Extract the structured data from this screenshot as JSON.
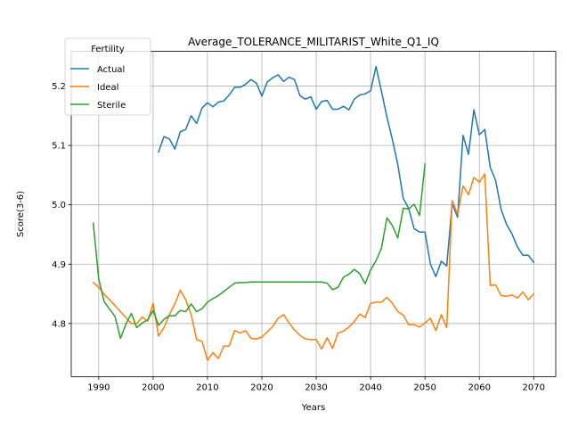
{
  "chart_data": {
    "type": "line",
    "title": "Average_TOLERANCE_MILITARIST_White_Q1_IQ",
    "xlabel": "Years",
    "ylabel": "Score(3-6)",
    "xlim": [
      1984.95,
      2074.05
    ],
    "ylim": [
      4.7105,
      5.2585
    ],
    "xticks": [
      1990,
      2000,
      2010,
      2020,
      2030,
      2040,
      2050,
      2060,
      2070
    ],
    "yticks": [
      4.8,
      4.9,
      5.0,
      5.1,
      5.2
    ],
    "grid": true,
    "legend": {
      "title": "Fertility",
      "position": "top-left"
    },
    "series": [
      {
        "name": "Actual",
        "color": "#1f77b4",
        "x": [
          2001,
          2002,
          2003,
          2004,
          2005,
          2006,
          2007,
          2008,
          2009,
          2010,
          2011,
          2012,
          2013,
          2014,
          2015,
          2016,
          2017,
          2018,
          2019,
          2020,
          2021,
          2022,
          2023,
          2024,
          2025,
          2026,
          2027,
          2028,
          2029,
          2030,
          2031,
          2032,
          2033,
          2034,
          2035,
          2036,
          2037,
          2038,
          2039,
          2040,
          2041,
          2042,
          2043,
          2044,
          2045,
          2046,
          2047,
          2048,
          2049,
          2050,
          2051,
          2052,
          2053,
          2054,
          2055,
          2056,
          2057,
          2058,
          2059,
          2060,
          2061,
          2062,
          2063,
          2064,
          2065,
          2066,
          2067,
          2068,
          2069,
          2070
        ],
        "y": [
          5.089,
          5.115,
          5.111,
          5.094,
          5.123,
          5.127,
          5.15,
          5.137,
          5.163,
          5.172,
          5.165,
          5.173,
          5.175,
          5.185,
          5.198,
          5.198,
          5.203,
          5.211,
          5.205,
          5.183,
          5.207,
          5.214,
          5.219,
          5.208,
          5.215,
          5.211,
          5.184,
          5.178,
          5.182,
          5.161,
          5.174,
          5.176,
          5.161,
          5.161,
          5.166,
          5.16,
          5.178,
          5.185,
          5.187,
          5.192,
          5.233,
          5.191,
          5.148,
          5.11,
          5.068,
          5.011,
          4.994,
          4.96,
          4.954,
          4.954,
          4.9,
          4.879,
          4.905,
          4.897,
          5.002,
          4.979,
          5.117,
          5.085,
          5.16,
          5.118,
          5.127,
          5.063,
          5.041,
          4.992,
          4.967,
          4.951,
          4.929,
          4.915,
          4.915,
          4.903
        ]
      },
      {
        "name": "Ideal",
        "color": "#ff7f0e",
        "x": [
          1989,
          1990,
          1991,
          1992,
          1993,
          1994,
          1995,
          1996,
          1997,
          1998,
          1999,
          2000,
          2001,
          2002,
          2003,
          2004,
          2005,
          2006,
          2007,
          2008,
          2009,
          2010,
          2011,
          2012,
          2013,
          2014,
          2015,
          2016,
          2017,
          2018,
          2019,
          2020,
          2021,
          2022,
          2023,
          2024,
          2025,
          2026,
          2027,
          2028,
          2029,
          2030,
          2031,
          2032,
          2033,
          2034,
          2035,
          2036,
          2037,
          2038,
          2039,
          2040,
          2041,
          2042,
          2043,
          2044,
          2045,
          2046,
          2047,
          2048,
          2049,
          2050,
          2051,
          2052,
          2053,
          2054,
          2055,
          2056,
          2057,
          2058,
          2059,
          2060,
          2061,
          2062,
          2063,
          2064,
          2065,
          2066,
          2067,
          2068,
          2069,
          2070
        ],
        "y": [
          4.869,
          4.861,
          4.849,
          4.84,
          4.83,
          4.82,
          4.81,
          4.8,
          4.8,
          4.811,
          4.804,
          4.834,
          4.779,
          4.793,
          4.815,
          4.833,
          4.856,
          4.84,
          4.815,
          4.773,
          4.77,
          4.738,
          4.751,
          4.741,
          4.762,
          4.762,
          4.788,
          4.784,
          4.788,
          4.775,
          4.774,
          4.777,
          4.786,
          4.795,
          4.809,
          4.815,
          4.801,
          4.789,
          4.78,
          4.774,
          4.773,
          4.773,
          4.757,
          4.776,
          4.758,
          4.784,
          4.787,
          4.794,
          4.803,
          4.816,
          4.81,
          4.834,
          4.836,
          4.836,
          4.844,
          4.834,
          4.82,
          4.814,
          4.798,
          4.798,
          4.794,
          4.801,
          4.809,
          4.788,
          4.815,
          4.793,
          5.007,
          4.984,
          5.032,
          5.017,
          5.046,
          5.038,
          5.052,
          4.864,
          4.865,
          4.847,
          4.846,
          4.848,
          4.843,
          4.853,
          4.84,
          4.85
        ]
      },
      {
        "name": "Sterile",
        "color": "#2ca02c",
        "x": [
          1989,
          1990,
          1991,
          1992,
          1993,
          1994,
          1995,
          1996,
          1997,
          1998,
          1999,
          2000,
          2001,
          2002,
          2003,
          2004,
          2005,
          2006,
          2007,
          2008,
          2009,
          2010,
          2011,
          2012,
          2013,
          2014,
          2015,
          2016,
          2017,
          2018,
          2019,
          2020,
          2021,
          2022,
          2023,
          2024,
          2025,
          2026,
          2027,
          2028,
          2029,
          2030,
          2031,
          2032,
          2033,
          2034,
          2035,
          2036,
          2037,
          2038,
          2039,
          2040,
          2041,
          2042,
          2043,
          2044,
          2045,
          2046,
          2047,
          2048,
          2049,
          2050
        ],
        "y": [
          4.969,
          4.875,
          4.837,
          4.824,
          4.812,
          4.775,
          4.799,
          4.817,
          4.793,
          4.801,
          4.806,
          4.822,
          4.797,
          4.807,
          4.813,
          4.813,
          4.822,
          4.82,
          4.833,
          4.82,
          4.825,
          4.836,
          4.842,
          4.847,
          4.854,
          4.861,
          4.868,
          4.869,
          4.869,
          4.87,
          4.87,
          4.87,
          4.87,
          4.87,
          4.87,
          4.87,
          4.87,
          4.87,
          4.87,
          4.87,
          4.87,
          4.87,
          4.87,
          4.868,
          4.857,
          4.861,
          4.878,
          4.883,
          4.891,
          4.884,
          4.867,
          4.89,
          4.906,
          4.927,
          4.978,
          4.965,
          4.944,
          4.994,
          4.993,
          5.001,
          4.982,
          5.069
        ]
      }
    ]
  }
}
